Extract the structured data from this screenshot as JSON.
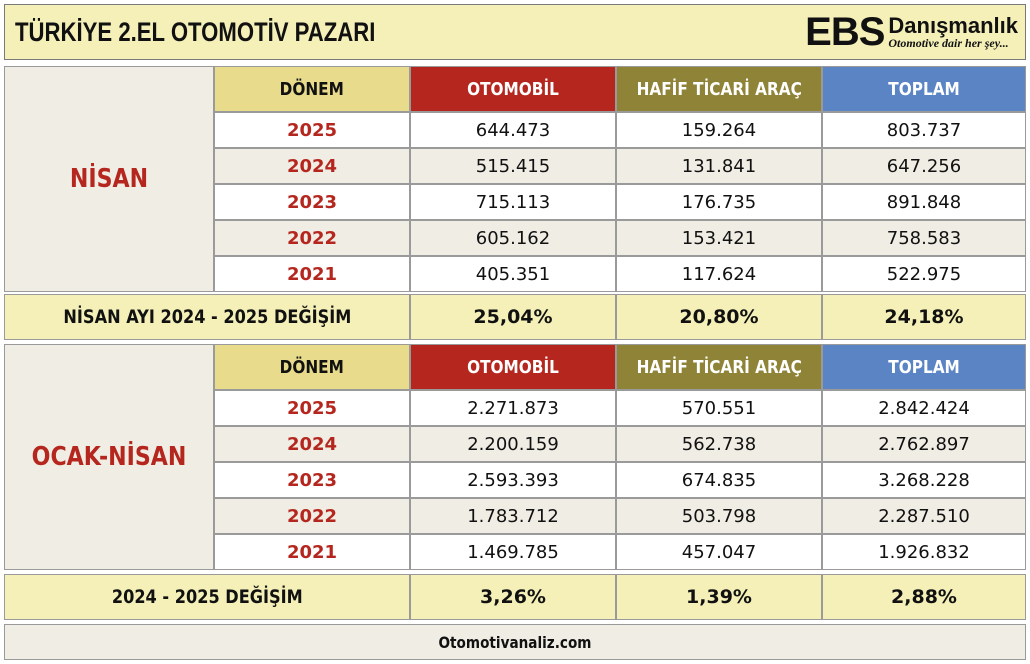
{
  "title": "TÜRKİYE 2.EL OTOMOTİV PAZARI",
  "logo": {
    "ebs": "EBS",
    "brand": "Danışmanlık",
    "tagline": "Otomotive dair her şey..."
  },
  "headers": {
    "donem": "DÖNEM",
    "otomobil": "OTOMOBİL",
    "hafif": "HAFİF TİCARİ ARAÇ",
    "toplam": "TOPLAM"
  },
  "sections": [
    {
      "label": "NİSAN",
      "rows": [
        {
          "year": "2025",
          "otomobil": "644.473",
          "hafif": "159.264",
          "toplam": "803.737"
        },
        {
          "year": "2024",
          "otomobil": "515.415",
          "hafif": "131.841",
          "toplam": "647.256"
        },
        {
          "year": "2023",
          "otomobil": "715.113",
          "hafif": "176.735",
          "toplam": "891.848"
        },
        {
          "year": "2022",
          "otomobil": "605.162",
          "hafif": "153.421",
          "toplam": "758.583"
        },
        {
          "year": "2021",
          "otomobil": "405.351",
          "hafif": "117.624",
          "toplam": "522.975"
        }
      ],
      "change": {
        "label": "NİSAN AYI  2024 - 2025 DEĞİŞİM",
        "otomobil": "25,04%",
        "hafif": "20,80%",
        "toplam": "24,18%"
      }
    },
    {
      "label": "OCAK-NİSAN",
      "rows": [
        {
          "year": "2025",
          "otomobil": "2.271.873",
          "hafif": "570.551",
          "toplam": "2.842.424"
        },
        {
          "year": "2024",
          "otomobil": "2.200.159",
          "hafif": "562.738",
          "toplam": "2.762.897"
        },
        {
          "year": "2023",
          "otomobil": "2.593.393",
          "hafif": "674.835",
          "toplam": "3.268.228"
        },
        {
          "year": "2022",
          "otomobil": "1.783.712",
          "hafif": "503.798",
          "toplam": "2.287.510"
        },
        {
          "year": "2021",
          "otomobil": "1.469.785",
          "hafif": "457.047",
          "toplam": "1.926.832"
        }
      ],
      "change": {
        "label": "2024 - 2025 DEĞİŞİM",
        "otomobil": "3,26%",
        "hafif": "1,39%",
        "toplam": "2,88%"
      }
    }
  ],
  "footer": "Otomotivanaliz.com"
}
